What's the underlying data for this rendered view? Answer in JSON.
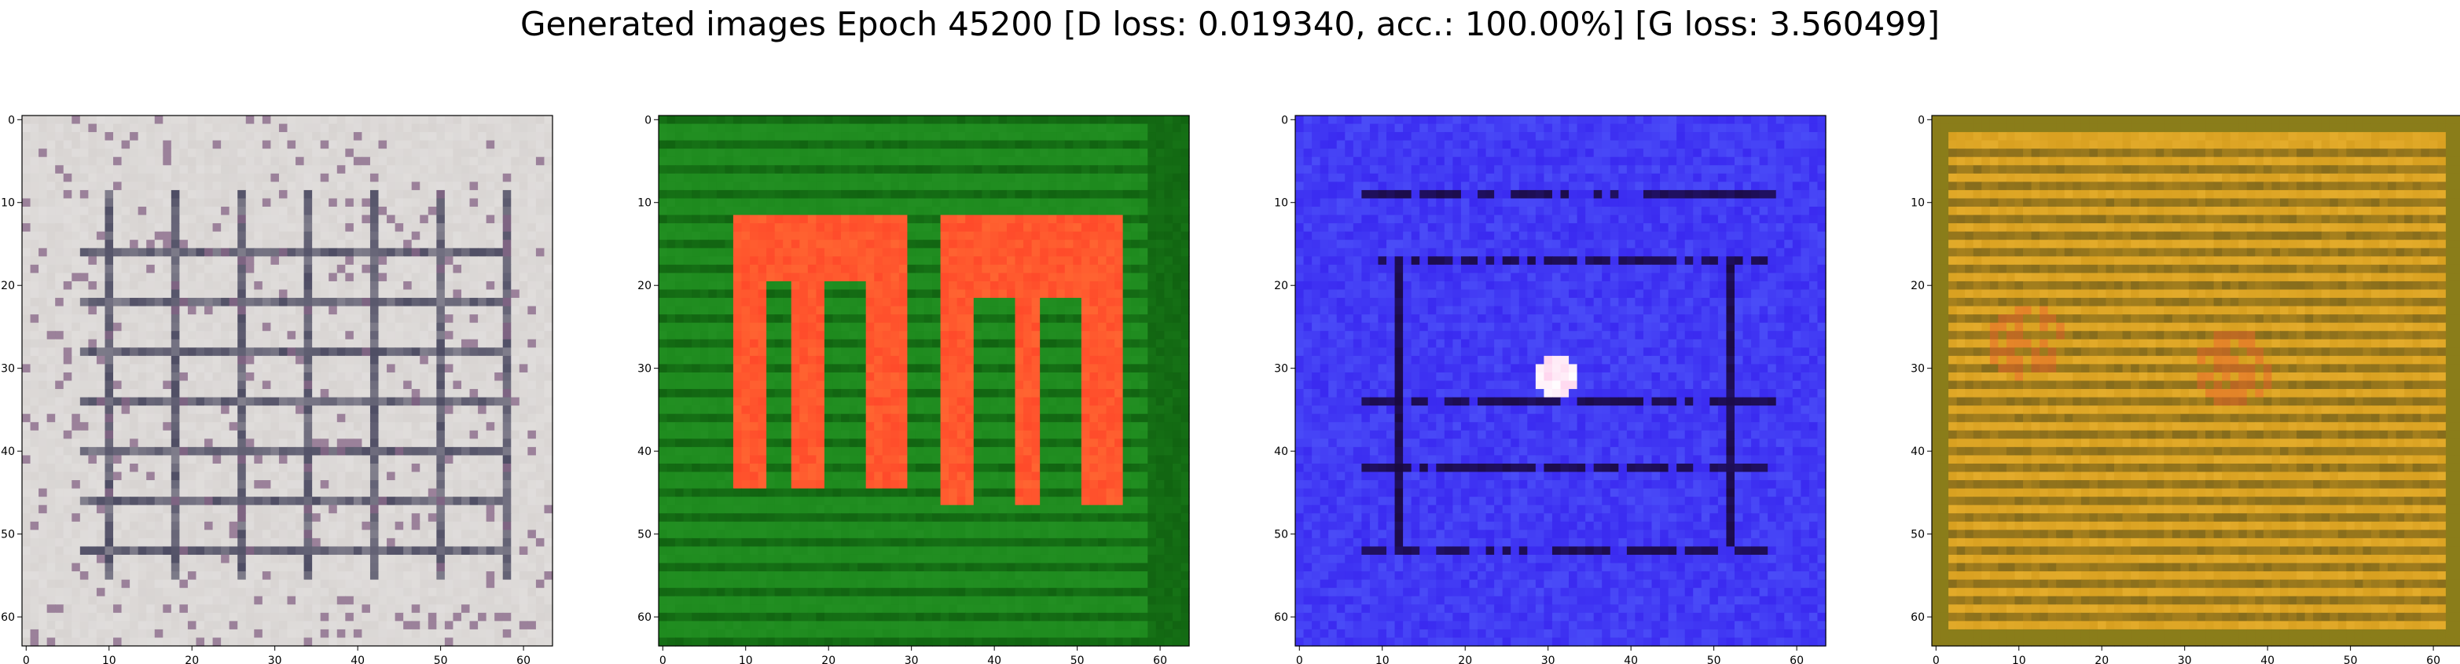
{
  "figure": {
    "title": "Generated images Epoch 45200 [D loss: 0.019340, acc.: 100.00%] [G loss: 3.560499]"
  },
  "chart_data": [
    {
      "type": "heatmap",
      "description_color": "grayish white with dark navy grid lines",
      "palette": {
        "base": "#d8d4d2",
        "line": "#1a1a3a",
        "accent": "#8a6a8a"
      },
      "pattern": "grid",
      "x": {
        "ticks": [
          0,
          10,
          20,
          30,
          40,
          50,
          60
        ],
        "lim": [
          -0.5,
          63.5
        ]
      },
      "y": {
        "ticks": [
          0,
          10,
          20,
          30,
          40,
          50,
          60
        ],
        "lim": [
          63.5,
          -0.5
        ]
      },
      "xlabel": "",
      "ylabel": "",
      "grid": false
    },
    {
      "type": "heatmap",
      "description_color": "green background with red-orange shapes",
      "palette": {
        "base": "#1e8a1e",
        "line": "#0e5a0e",
        "accent": "#ff4a2a"
      },
      "pattern": "shapes",
      "x": {
        "ticks": [
          0,
          10,
          20,
          30,
          40,
          50,
          60
        ],
        "lim": [
          -0.5,
          63.5
        ]
      },
      "y": {
        "ticks": [
          0,
          10,
          20,
          30,
          40,
          50,
          60
        ],
        "lim": [
          63.5,
          -0.5
        ]
      },
      "xlabel": "",
      "ylabel": "",
      "grid": false
    },
    {
      "type": "heatmap",
      "description_color": "blue background with dark horizontal bars and a white spot",
      "palette": {
        "base": "#3a2af0",
        "line": "#1a0a40",
        "accent": "#ffffff"
      },
      "pattern": "bars",
      "x": {
        "ticks": [
          0,
          10,
          20,
          30,
          40,
          50,
          60
        ],
        "lim": [
          -0.5,
          63.5
        ]
      },
      "y": {
        "ticks": [
          0,
          10,
          20,
          30,
          40,
          50,
          60
        ],
        "lim": [
          63.5,
          -0.5
        ]
      },
      "xlabel": "",
      "ylabel": "",
      "grid": false
    },
    {
      "type": "heatmap",
      "description_color": "golden yellow with horizontal stripes",
      "palette": {
        "base": "#d8a020",
        "line": "#6a5a1a",
        "accent": "#e8602a"
      },
      "pattern": "stripes",
      "x": {
        "ticks": [
          0,
          10,
          20,
          30,
          40,
          50,
          60
        ],
        "lim": [
          -0.5,
          63.5
        ]
      },
      "y": {
        "ticks": [
          0,
          10,
          20,
          30,
          40,
          50,
          60
        ],
        "lim": [
          63.5,
          -0.5
        ]
      },
      "xlabel": "",
      "ylabel": "",
      "grid": false
    }
  ]
}
